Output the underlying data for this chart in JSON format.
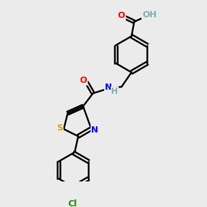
{
  "background_color": "#ebebeb",
  "bond_color": "#000000",
  "atom_colors": {
    "O": "#ff0000",
    "N": "#0000ff",
    "S": "#ccaa00",
    "Cl": "#228800",
    "H_gray": "#7ab0b0",
    "C": "#000000"
  },
  "bond_width": 1.8,
  "figsize": [
    3.0,
    3.0
  ],
  "dpi": 100
}
